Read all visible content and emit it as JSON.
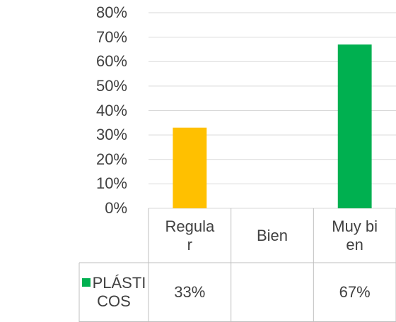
{
  "chart_data": {
    "type": "bar",
    "categories": [
      "Regular",
      "Bien",
      "Muy bien"
    ],
    "series": [
      {
        "name": "PLÁSTICOS",
        "color": "#00B050",
        "point_colors": [
          "#FFC000",
          null,
          "#00B050"
        ],
        "values": [
          33,
          null,
          67
        ],
        "value_labels": [
          "33%",
          null,
          "67%"
        ]
      }
    ],
    "ylim": [
      0,
      80
    ],
    "yticks": [
      {
        "value": 0,
        "label": "0%"
      },
      {
        "value": 10,
        "label": "10%"
      },
      {
        "value": 20,
        "label": "20%"
      },
      {
        "value": 30,
        "label": "30%"
      },
      {
        "value": 40,
        "label": "40%"
      },
      {
        "value": 50,
        "label": "50%"
      },
      {
        "value": 60,
        "label": "60%"
      },
      {
        "value": 70,
        "label": "70%"
      },
      {
        "value": 80,
        "label": "80%"
      }
    ],
    "grid": true,
    "data_table": true
  }
}
